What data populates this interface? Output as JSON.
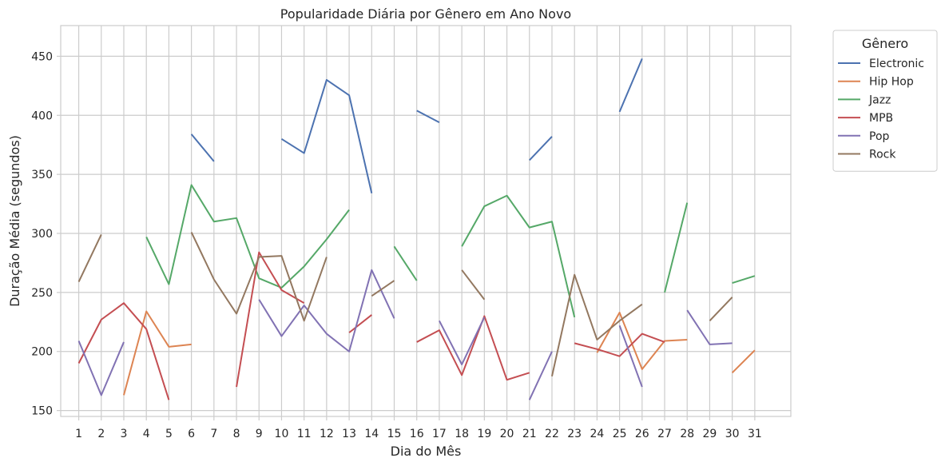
{
  "chart_data": {
    "type": "line",
    "title": "Popularidade Diária por Gênero em Ano Novo",
    "xlabel": "Dia do Mês",
    "ylabel": "Duração Média (segundos)",
    "x": [
      1,
      2,
      3,
      4,
      5,
      6,
      7,
      8,
      9,
      10,
      11,
      12,
      13,
      14,
      15,
      16,
      17,
      18,
      19,
      20,
      21,
      22,
      23,
      24,
      25,
      26,
      27,
      28,
      29,
      30,
      31
    ],
    "xlim": [
      0.2,
      32.6
    ],
    "ylim": [
      145,
      476
    ],
    "yticks": [
      150,
      200,
      250,
      300,
      350,
      400,
      450
    ],
    "grid": true,
    "legend": {
      "title": "Gênero",
      "placement": "outside-top-right"
    },
    "series": [
      {
        "name": "Electronic",
        "color": "#4c72b0",
        "values": [
          null,
          null,
          null,
          null,
          null,
          384,
          361,
          null,
          null,
          380,
          368,
          430,
          417,
          334,
          null,
          404,
          394,
          null,
          null,
          null,
          362,
          382,
          null,
          null,
          403,
          448,
          null,
          null,
          null,
          null,
          null
        ]
      },
      {
        "name": "Hip Hop",
        "color": "#dd8452",
        "values": [
          null,
          null,
          163,
          234,
          204,
          206,
          null,
          null,
          null,
          null,
          null,
          null,
          null,
          null,
          null,
          null,
          null,
          null,
          null,
          null,
          null,
          null,
          null,
          199,
          233,
          185,
          209,
          210,
          null,
          182,
          201
        ]
      },
      {
        "name": "Jazz",
        "color": "#55a868",
        "values": [
          null,
          null,
          null,
          297,
          257,
          341,
          310,
          313,
          262,
          254,
          272,
          295,
          320,
          null,
          289,
          260,
          null,
          289,
          323,
          332,
          305,
          310,
          229,
          null,
          null,
          null,
          250,
          326,
          null,
          258,
          264
        ]
      },
      {
        "name": "MPB",
        "color": "#c44e52",
        "values": [
          190,
          227,
          241,
          219,
          159,
          null,
          null,
          170,
          284,
          252,
          241,
          null,
          216,
          231,
          null,
          208,
          218,
          180,
          230,
          176,
          182,
          null,
          207,
          202,
          196,
          215,
          208,
          null,
          null,
          null,
          null
        ]
      },
      {
        "name": "Pop",
        "color": "#8172b3",
        "values": [
          209,
          163,
          208,
          null,
          null,
          null,
          null,
          null,
          244,
          213,
          239,
          215,
          200,
          269,
          228,
          null,
          226,
          189,
          229,
          null,
          159,
          200,
          null,
          null,
          222,
          170,
          null,
          235,
          206,
          207,
          null
        ]
      },
      {
        "name": "Rock",
        "color": "#937860",
        "values": [
          259,
          299,
          null,
          null,
          null,
          301,
          261,
          232,
          280,
          281,
          226,
          280,
          null,
          247,
          260,
          null,
          null,
          269,
          244,
          null,
          null,
          179,
          265,
          210,
          226,
          240,
          null,
          null,
          226,
          246,
          null
        ]
      }
    ]
  }
}
